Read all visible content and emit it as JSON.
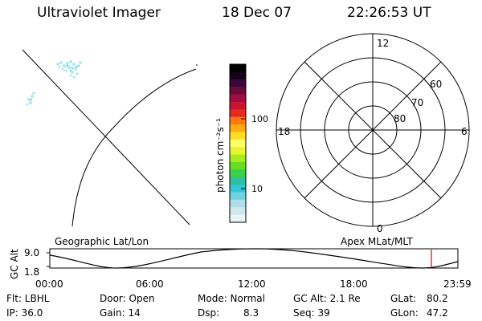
{
  "header": {
    "title": "Ultraviolet Imager",
    "date": "18 Dec 07",
    "time": "22:26:53 UT"
  },
  "colorbar": {
    "unit_label": "photon cm⁻²s⁻¹",
    "tick_100": "100",
    "tick_10": "10",
    "colors": [
      "#e8f4f6",
      "#cde9ee",
      "#b2dde6",
      "#6fd3e0",
      "#33c7d6",
      "#2ec0a0",
      "#3ad04a",
      "#66dd22",
      "#a8ec1e",
      "#e6f532",
      "#ffff66",
      "#ffdd22",
      "#ffaa11",
      "#ff7711",
      "#e52a1e",
      "#c81430",
      "#a00c40",
      "#6a0a3a",
      "#3a0836",
      "#16031c",
      "#000000"
    ]
  },
  "polar": {
    "mlt_labels": {
      "top": "12",
      "left": "18",
      "right": "6",
      "bottom": "0"
    },
    "lat_labels": [
      "60",
      "70",
      "80"
    ]
  },
  "timeline": {
    "left_label": "Geographic Lat/Lon",
    "right_label": "Apex  MLat/MLT",
    "axis_title": "GC Alt",
    "y_ticks": [
      "9.0",
      "1.8"
    ],
    "x_ticks": [
      "00:00",
      "06:00",
      "12:00",
      "18:00",
      "23:59"
    ],
    "marker_color": "#dd0000"
  },
  "status": {
    "filter": "Flt: LBHL",
    "ip": "IP: 36.0",
    "door": "Door: Open",
    "gain": "Gain: 14",
    "mode": "Mode: Normal",
    "dsp_label": "Dsp:",
    "dsp_value": "8.3",
    "gc_alt": "GC Alt: 2.1 Re",
    "seq": "Seq: 39",
    "glat_label": "GLat:",
    "glat_value": "80.2",
    "glon_label": "GLon:",
    "glon_value": "47.2"
  }
}
